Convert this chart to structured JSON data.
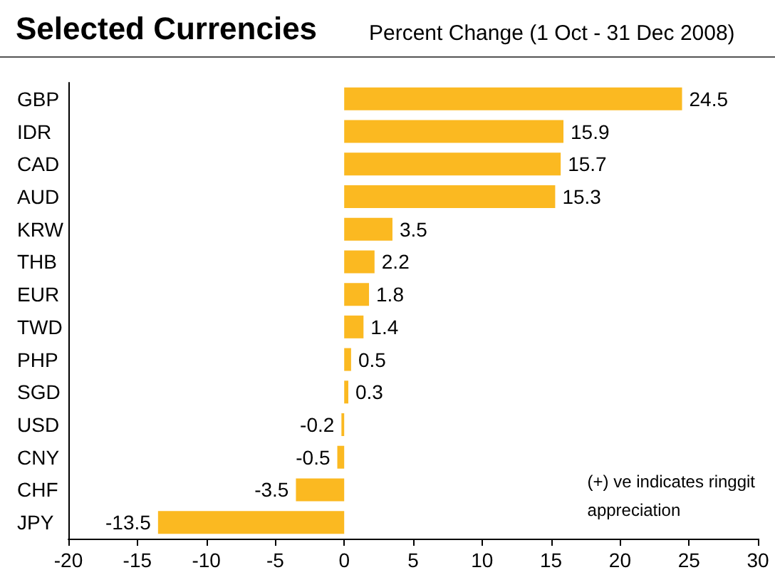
{
  "chart_data": {
    "type": "bar",
    "orientation": "horizontal",
    "title": "Selected Currencies",
    "subtitle": "Percent Change (1 Oct - 31 Dec 2008)",
    "categories": [
      "GBP",
      "IDR",
      "CAD",
      "AUD",
      "KRW",
      "THB",
      "EUR",
      "TWD",
      "PHP",
      "SGD",
      "USD",
      "CNY",
      "CHF",
      "JPY"
    ],
    "values": [
      24.5,
      15.9,
      15.7,
      15.3,
      3.5,
      2.2,
      1.8,
      1.4,
      0.5,
      0.3,
      -0.2,
      -0.5,
      -3.5,
      -13.5
    ],
    "color": "#fbb921",
    "xlim": [
      -20,
      30
    ],
    "xticks": [
      -20,
      -15,
      -10,
      -5,
      0,
      5,
      10,
      15,
      20,
      25,
      30
    ],
    "data_labels": true,
    "grid": false,
    "annotations": [
      "(+) ve indicates ringgit\nappreciation"
    ]
  }
}
